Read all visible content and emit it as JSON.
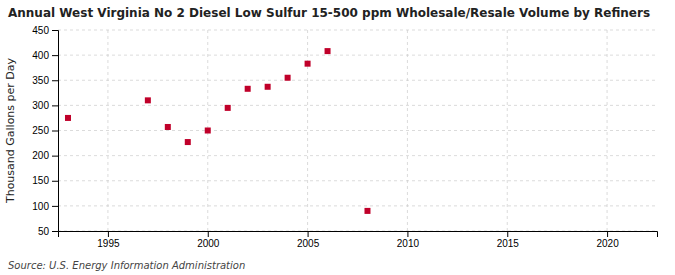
{
  "chart_data": {
    "type": "scatter",
    "title": "Annual West Virginia No 2 Diesel Low Sulfur 15-500 ppm Wholesale/Resale Volume by Refiners",
    "y_label": "Thousand Gallons per Day",
    "annotation": "Source: U.S. Energy Information Administration",
    "x": [
      1993,
      1997,
      1998,
      1999,
      2000,
      2001,
      2002,
      2003,
      2004,
      2005,
      2006,
      2008
    ],
    "values": [
      275,
      310,
      257,
      227,
      250,
      295,
      333,
      337,
      355,
      383,
      408,
      90
    ],
    "color": "#c0002a",
    "marker": "square",
    "xlim": [
      1992.5,
      2022.5
    ],
    "ylim": [
      50,
      450
    ],
    "xticks": [
      1995,
      2000,
      2005,
      2010,
      2015,
      2020
    ],
    "yticks": [
      50,
      100,
      150,
      200,
      250,
      300,
      350,
      400,
      450
    ],
    "grid": true
  }
}
